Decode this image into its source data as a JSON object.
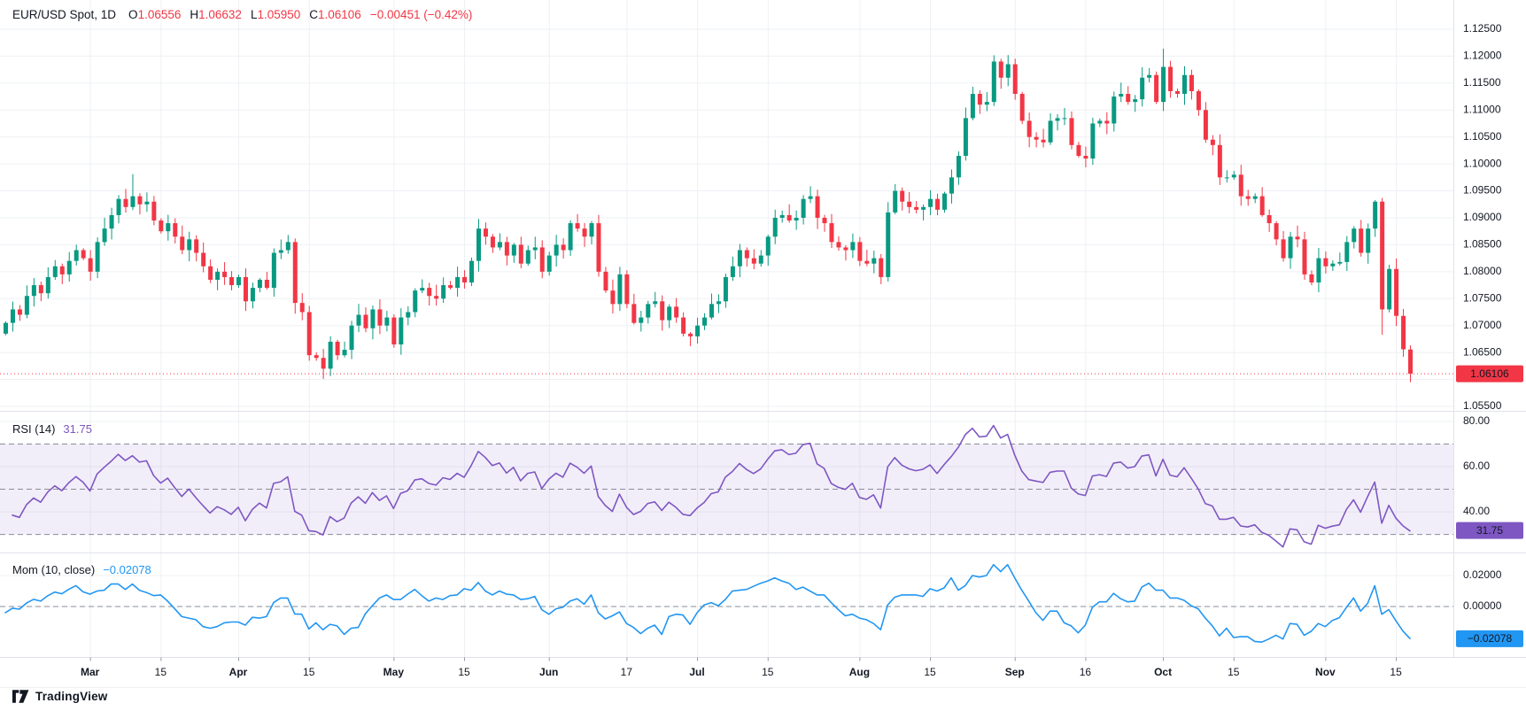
{
  "legend": {
    "symbol_title": "EUR/USD Spot, 1D",
    "ohlc": [
      {
        "k": "O",
        "v": "1.06556"
      },
      {
        "k": "H",
        "v": "1.06632"
      },
      {
        "k": "L",
        "v": "1.05950"
      },
      {
        "k": "C",
        "v": "1.06106"
      }
    ],
    "change": "−0.00451 (−0.42%)"
  },
  "indicators": {
    "rsi": {
      "label": "RSI (14)",
      "value_label": "31.75"
    },
    "mom": {
      "label": "Mom (10, close)",
      "value_label": "−0.02078"
    }
  },
  "footer": {
    "brand": "TradingView"
  },
  "colors": {
    "up": "#089981",
    "down": "#F23645",
    "rsi": "#7E57C2",
    "rsi_band_fill": "rgba(126,87,194,0.10)",
    "mom": "#2196F3",
    "text": "#131722",
    "grid": "#eef0f4",
    "separator": "#e0e3eb",
    "dashed": "#8a8d97",
    "badge_text": "#ffffff"
  },
  "chart_data": {
    "type": "candlestick",
    "title": "EUR/USD Spot, 1D",
    "legend_note": "Daily candles mid-Feb to mid-Nov with RSI(14) and Momentum(10) sub-panes",
    "panes": [
      {
        "name": "price",
        "type": "candlestick",
        "range": [
          1.05434,
          1.13042
        ],
        "y_ticks": [
          "1.12500",
          "1.12000",
          "1.11500",
          "1.11000",
          "1.10500",
          "1.10000",
          "1.09500",
          "1.09000",
          "1.08500",
          "1.08000",
          "1.07500",
          "1.07000",
          "1.06500",
          "1.06000",
          "1.05500"
        ],
        "closes": [
          1.0705,
          1.073,
          1.072,
          1.0755,
          1.0775,
          1.076,
          1.079,
          1.081,
          1.0795,
          1.082,
          1.084,
          1.0825,
          1.08,
          1.0855,
          1.088,
          1.0905,
          1.0935,
          1.092,
          1.094,
          1.0925,
          1.093,
          1.0895,
          1.0875,
          1.089,
          1.0865,
          1.084,
          1.086,
          1.0835,
          1.081,
          1.0785,
          1.08,
          1.079,
          1.0775,
          1.079,
          1.0745,
          1.077,
          1.0785,
          1.077,
          1.0835,
          1.084,
          1.0855,
          1.0742,
          1.0725,
          1.0645,
          1.064,
          1.062,
          1.067,
          1.0645,
          1.0655,
          1.07,
          1.072,
          1.0695,
          1.073,
          1.07,
          1.0715,
          1.0665,
          1.0715,
          1.0725,
          1.0765,
          1.077,
          1.0755,
          1.075,
          1.0775,
          1.077,
          1.079,
          1.078,
          1.082,
          1.088,
          1.0865,
          1.0845,
          1.0855,
          1.083,
          1.085,
          1.0815,
          1.084,
          1.0845,
          1.08,
          1.083,
          1.085,
          1.084,
          1.089,
          1.088,
          1.0865,
          1.089,
          1.08,
          1.0765,
          1.074,
          1.0795,
          1.074,
          1.0705,
          1.0715,
          1.074,
          1.0745,
          1.071,
          1.0735,
          1.0715,
          1.0685,
          1.068,
          1.07,
          1.0715,
          1.074,
          1.0745,
          1.079,
          1.081,
          1.084,
          1.0825,
          1.0815,
          1.083,
          1.0865,
          1.09,
          1.0905,
          1.0895,
          1.09,
          1.0935,
          1.094,
          1.09,
          1.089,
          1.0855,
          1.0845,
          1.084,
          1.0855,
          1.082,
          1.0815,
          1.0825,
          1.079,
          1.091,
          1.095,
          1.093,
          1.092,
          1.0915,
          1.092,
          1.0935,
          1.0915,
          1.0945,
          1.0975,
          1.1015,
          1.1085,
          1.113,
          1.111,
          1.1115,
          1.119,
          1.116,
          1.1185,
          1.113,
          1.108,
          1.105,
          1.1045,
          1.104,
          1.108,
          1.1085,
          1.1085,
          1.1035,
          1.1015,
          1.101,
          1.1075,
          1.108,
          1.1075,
          1.1125,
          1.113,
          1.1115,
          1.112,
          1.116,
          1.1165,
          1.1115,
          1.118,
          1.1135,
          1.113,
          1.1165,
          1.1135,
          1.11,
          1.1045,
          1.1035,
          1.0975,
          1.0975,
          1.098,
          1.094,
          1.0935,
          1.094,
          1.0905,
          1.089,
          1.086,
          1.0825,
          1.0865,
          1.086,
          1.0795,
          1.078,
          1.0825,
          1.081,
          1.0815,
          1.0818,
          1.0855,
          1.088,
          1.0835,
          1.088,
          1.093,
          1.073,
          1.0805,
          1.0718,
          1.0656,
          1.0611
        ],
        "extremes": {
          "18": [
            1.0981,
            null
          ],
          "45": [
            null,
            1.0601
          ],
          "142": [
            1.1202,
            null
          ],
          "164": [
            1.1214,
            null
          ],
          "195": [
            1.0937,
            1.0683
          ]
        },
        "last_ohlc": [
          1.06556,
          1.06632,
          1.0595,
          1.06106
        ],
        "price_line": {
          "value": 1.06106,
          "label": "1.06106"
        }
      },
      {
        "name": "rsi",
        "type": "line",
        "title": "RSI (14)",
        "period": 14,
        "seed_gain": 0.001,
        "seed_loss": 0.0019,
        "range": [
          22.4,
          83.9
        ],
        "y_ticks": [
          "80.00",
          "60.00",
          "40.00"
        ],
        "dashed_levels": [
          70,
          50,
          30
        ],
        "band": [
          30,
          70
        ],
        "last": {
          "value": 31.75,
          "label": "31.75"
        }
      },
      {
        "name": "mom",
        "type": "line",
        "title": "Mom (10, close)",
        "period": 10,
        "pre_slope": 0.0004,
        "range": [
          -0.032,
          0.0337
        ],
        "y_ticks": [
          "0.02000",
          "0.00000"
        ],
        "dashed_levels": [
          0
        ],
        "last": {
          "value": -0.02078,
          "label": "−0.02078"
        }
      }
    ],
    "x_axis": {
      "labels": [
        {
          "t": "Mar",
          "i": 12,
          "b": 1
        },
        {
          "t": "15",
          "i": 22
        },
        {
          "t": "Apr",
          "i": 33,
          "b": 1
        },
        {
          "t": "15",
          "i": 43
        },
        {
          "t": "May",
          "i": 55,
          "b": 1
        },
        {
          "t": "15",
          "i": 65
        },
        {
          "t": "Jun",
          "i": 77,
          "b": 1
        },
        {
          "t": "17",
          "i": 88
        },
        {
          "t": "Jul",
          "i": 98,
          "b": 1
        },
        {
          "t": "15",
          "i": 108
        },
        {
          "t": "Aug",
          "i": 121,
          "b": 1
        },
        {
          "t": "15",
          "i": 131
        },
        {
          "t": "Sep",
          "i": 143,
          "b": 1
        },
        {
          "t": "16",
          "i": 153
        },
        {
          "t": "Oct",
          "i": 164,
          "b": 1
        },
        {
          "t": "15",
          "i": 174
        },
        {
          "t": "Nov",
          "i": 187,
          "b": 1
        },
        {
          "t": "15",
          "i": 197
        }
      ]
    }
  }
}
